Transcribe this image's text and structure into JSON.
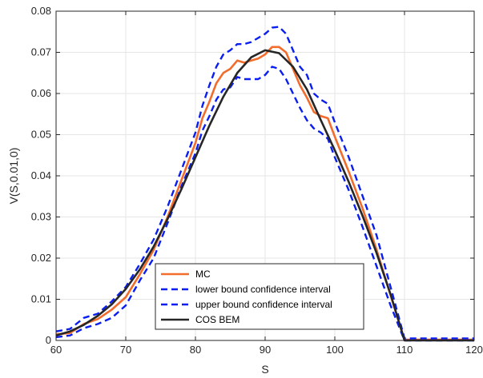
{
  "chart_data": {
    "type": "line",
    "title": "",
    "xlabel": "S",
    "ylabel": "V(S,0.01,0)",
    "xlim": [
      60,
      120
    ],
    "ylim": [
      0,
      0.08
    ],
    "x_ticks": [
      60,
      70,
      80,
      90,
      100,
      110,
      120
    ],
    "x_tick_labels": [
      "60",
      "70",
      "80",
      "90",
      "100",
      "110",
      "120"
    ],
    "y_ticks": [
      0,
      0.01,
      0.02,
      0.03,
      0.04,
      0.05,
      0.06,
      0.07,
      0.08
    ],
    "y_tick_labels": [
      "0",
      "0.01",
      "0.02",
      "0.03",
      "0.04",
      "0.05",
      "0.06",
      "0.07",
      "0.08"
    ],
    "grid": true,
    "legend_position": "bottom-center",
    "series": [
      {
        "name": "MC",
        "color": "#f26c2c",
        "style": "solid",
        "points": [
          [
            60,
            0.0015
          ],
          [
            62,
            0.0018
          ],
          [
            64,
            0.004
          ],
          [
            66,
            0.0052
          ],
          [
            68,
            0.0075
          ],
          [
            70,
            0.0105
          ],
          [
            72,
            0.016
          ],
          [
            74,
            0.022
          ],
          [
            76,
            0.03
          ],
          [
            78,
            0.039
          ],
          [
            80,
            0.048
          ],
          [
            81,
            0.054
          ],
          [
            82,
            0.058
          ],
          [
            83,
            0.0625
          ],
          [
            84,
            0.065
          ],
          [
            85,
            0.066
          ],
          [
            86,
            0.068
          ],
          [
            87,
            0.0675
          ],
          [
            88,
            0.068
          ],
          [
            89,
            0.0685
          ],
          [
            90,
            0.0695
          ],
          [
            91,
            0.0713
          ],
          [
            92,
            0.0713
          ],
          [
            93,
            0.07
          ],
          [
            94,
            0.066
          ],
          [
            95,
            0.062
          ],
          [
            96,
            0.059
          ],
          [
            97,
            0.0555
          ],
          [
            98,
            0.0545
          ],
          [
            99,
            0.054
          ],
          [
            100,
            0.0495
          ],
          [
            102,
            0.041
          ],
          [
            104,
            0.032
          ],
          [
            106,
            0.022
          ],
          [
            108,
            0.011
          ],
          [
            110,
            0.0002
          ],
          [
            120,
            0.0002
          ]
        ]
      },
      {
        "name": "lower bound confidence interval",
        "color": "#0a1ef0",
        "style": "dashed",
        "points": [
          [
            60,
            0.0008
          ],
          [
            62,
            0.0012
          ],
          [
            64,
            0.003
          ],
          [
            66,
            0.004
          ],
          [
            68,
            0.0055
          ],
          [
            70,
            0.0085
          ],
          [
            72,
            0.0145
          ],
          [
            74,
            0.02
          ],
          [
            76,
            0.0285
          ],
          [
            78,
            0.0375
          ],
          [
            80,
            0.0455
          ],
          [
            81,
            0.051
          ],
          [
            82,
            0.0545
          ],
          [
            83,
            0.0585
          ],
          [
            84,
            0.061
          ],
          [
            85,
            0.0615
          ],
          [
            86,
            0.064
          ],
          [
            87,
            0.0635
          ],
          [
            88,
            0.0635
          ],
          [
            89,
            0.0635
          ],
          [
            90,
            0.0645
          ],
          [
            91,
            0.0665
          ],
          [
            92,
            0.066
          ],
          [
            93,
            0.0635
          ],
          [
            94,
            0.06
          ],
          [
            95,
            0.0565
          ],
          [
            96,
            0.0535
          ],
          [
            97,
            0.0515
          ],
          [
            98,
            0.0505
          ],
          [
            99,
            0.049
          ],
          [
            100,
            0.0445
          ],
          [
            102,
            0.0365
          ],
          [
            104,
            0.0275
          ],
          [
            106,
            0.018
          ],
          [
            108,
            0.0085
          ],
          [
            110,
            0.0
          ],
          [
            120,
            0.0
          ]
        ]
      },
      {
        "name": "upper bound confidence interval",
        "color": "#0a1ef0",
        "style": "dashed",
        "points": [
          [
            60,
            0.0022
          ],
          [
            62,
            0.0028
          ],
          [
            64,
            0.0055
          ],
          [
            66,
            0.0065
          ],
          [
            68,
            0.0095
          ],
          [
            70,
            0.013
          ],
          [
            72,
            0.0185
          ],
          [
            74,
            0.0245
          ],
          [
            76,
            0.0325
          ],
          [
            78,
            0.0415
          ],
          [
            80,
            0.0505
          ],
          [
            81,
            0.057
          ],
          [
            82,
            0.062
          ],
          [
            83,
            0.0665
          ],
          [
            84,
            0.0695
          ],
          [
            85,
            0.0705
          ],
          [
            86,
            0.072
          ],
          [
            87,
            0.072
          ],
          [
            88,
            0.0725
          ],
          [
            89,
            0.0735
          ],
          [
            90,
            0.0745
          ],
          [
            91,
            0.076
          ],
          [
            92,
            0.0762
          ],
          [
            93,
            0.0745
          ],
          [
            94,
            0.0705
          ],
          [
            95,
            0.0665
          ],
          [
            96,
            0.0645
          ],
          [
            97,
            0.06
          ],
          [
            98,
            0.0585
          ],
          [
            99,
            0.0575
          ],
          [
            100,
            0.053
          ],
          [
            102,
            0.0445
          ],
          [
            104,
            0.035
          ],
          [
            106,
            0.0255
          ],
          [
            108,
            0.013
          ],
          [
            110,
            0.0005
          ],
          [
            120,
            0.0005
          ]
        ]
      },
      {
        "name": "COS BEM",
        "color": "#262626",
        "style": "solid",
        "points": [
          [
            60,
            0.0012
          ],
          [
            62,
            0.0022
          ],
          [
            64,
            0.0038
          ],
          [
            66,
            0.006
          ],
          [
            68,
            0.0088
          ],
          [
            70,
            0.0125
          ],
          [
            72,
            0.0172
          ],
          [
            74,
            0.0228
          ],
          [
            76,
            0.0295
          ],
          [
            78,
            0.0368
          ],
          [
            80,
            0.0445
          ],
          [
            82,
            0.0522
          ],
          [
            84,
            0.0592
          ],
          [
            86,
            0.065
          ],
          [
            88,
            0.0688
          ],
          [
            90,
            0.0705
          ],
          [
            92,
            0.0698
          ],
          [
            94,
            0.0665
          ],
          [
            96,
            0.061
          ],
          [
            98,
            0.0535
          ],
          [
            100,
            0.0462
          ],
          [
            102,
            0.0385
          ],
          [
            104,
            0.0302
          ],
          [
            106,
            0.0212
          ],
          [
            108,
            0.0112
          ],
          [
            110,
            0.0
          ],
          [
            120,
            0.0
          ]
        ]
      }
    ]
  }
}
